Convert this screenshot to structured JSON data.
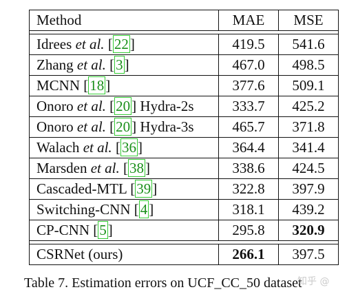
{
  "table": {
    "headers": [
      "Method",
      "MAE",
      "MSE"
    ],
    "rows": [
      {
        "name": "Idrees",
        "etal": "et al.",
        "ref": "22",
        "suffix": "",
        "mae": "419.5",
        "mse": "541.6",
        "mae_bold": false,
        "mse_bold": false
      },
      {
        "name": "Zhang",
        "etal": "et al.",
        "ref": "3",
        "suffix": "",
        "mae": "467.0",
        "mse": "498.5",
        "mae_bold": false,
        "mse_bold": false
      },
      {
        "name": "MCNN",
        "etal": "",
        "ref": "18",
        "suffix": "",
        "mae": "377.6",
        "mse": "509.1",
        "mae_bold": false,
        "mse_bold": false
      },
      {
        "name": "Onoro",
        "etal": "et al.",
        "ref": "20",
        "suffix": "Hydra-2s",
        "mae": "333.7",
        "mse": "425.2",
        "mae_bold": false,
        "mse_bold": false
      },
      {
        "name": "Onoro",
        "etal": "et al.",
        "ref": "20",
        "suffix": "Hydra-3s",
        "mae": "465.7",
        "mse": "371.8",
        "mae_bold": false,
        "mse_bold": false
      },
      {
        "name": "Walach",
        "etal": "et al.",
        "ref": "36",
        "suffix": "",
        "mae": "364.4",
        "mse": "341.4",
        "mae_bold": false,
        "mse_bold": false
      },
      {
        "name": "Marsden",
        "etal": "et al.",
        "ref": "38",
        "suffix": "",
        "mae": "338.6",
        "mse": "424.5",
        "mae_bold": false,
        "mse_bold": false
      },
      {
        "name": "Cascaded-MTL",
        "etal": "",
        "ref": "39",
        "suffix": "",
        "mae": "322.8",
        "mse": "397.9",
        "mae_bold": false,
        "mse_bold": false
      },
      {
        "name": "Switching-CNN",
        "etal": "",
        "ref": "4",
        "suffix": "",
        "mae": "318.1",
        "mse": "439.2",
        "mae_bold": false,
        "mse_bold": false
      },
      {
        "name": "CP-CNN",
        "etal": "",
        "ref": "5",
        "suffix": "",
        "mae": "295.8",
        "mse": "320.9",
        "mae_bold": false,
        "mse_bold": true
      },
      {
        "name": "CSRNet (ours)",
        "etal": "",
        "ref": "",
        "suffix": "",
        "mae": "266.1",
        "mse": "397.5",
        "mae_bold": true,
        "mse_bold": false
      }
    ]
  },
  "caption": "Table 7. Estimation errors on UCF_CC_50 dataset",
  "watermark": "知乎 @",
  "colors": {
    "reference_link": "#1a8f1a",
    "reference_box": "#33cc33"
  }
}
